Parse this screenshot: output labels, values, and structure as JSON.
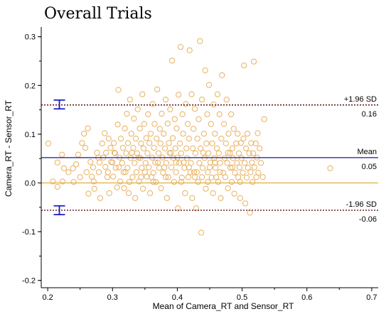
{
  "chart_data": {
    "type": "scatter",
    "title": "Overall Trials",
    "xlabel": "Mean of Camera_RT and Sensor_RT",
    "ylabel": "Camera_RT - Sensor_RT",
    "xlim": [
      0.19,
      0.71
    ],
    "ylim": [
      -0.215,
      0.32
    ],
    "x_ticks": [
      0.2,
      0.3,
      0.4,
      0.5,
      0.6,
      0.7
    ],
    "x_tick_labels": [
      "0.2",
      "0.3",
      "0.4",
      "0.5",
      "0.6",
      "0.7"
    ],
    "y_ticks": [
      -0.2,
      -0.1,
      0.0,
      0.1,
      0.2,
      0.3
    ],
    "y_tick_labels": [
      "-0.2",
      "-0.1",
      "0.0",
      "0.1",
      "0.2",
      "0.3"
    ],
    "grid": false,
    "zero_line": 0.0,
    "reference_lines": [
      {
        "name": "+1.96 SD",
        "value": 0.16,
        "value_label": "0.16",
        "color": "#5a1010",
        "style": "dashed"
      },
      {
        "name": "Mean",
        "value": 0.052,
        "value_label": "0.05",
        "color": "#1a1a8c",
        "style": "solid"
      },
      {
        "name": "-1.96 SD",
        "value": -0.056,
        "value_label": "-0.06",
        "color": "#5a1010",
        "style": "dashed"
      }
    ],
    "error_bars": [
      {
        "x": 0.218,
        "center": 0.161,
        "low": 0.152,
        "high": 0.17,
        "color": "#1a1acc"
      },
      {
        "x": 0.218,
        "center": -0.056,
        "low": -0.065,
        "high": -0.047,
        "color": "#1a1acc"
      }
    ],
    "colors": {
      "points": "#e8b060",
      "zero_line": "#e0b040",
      "axis": "#000000"
    },
    "points": [
      [
        0.201,
        0.081
      ],
      [
        0.222,
        0.058
      ],
      [
        0.215,
        0.042
      ],
      [
        0.225,
        0.03
      ],
      [
        0.208,
        0.003
      ],
      [
        0.223,
        0.003
      ],
      [
        0.215,
        -0.008
      ],
      [
        0.232,
        0.022
      ],
      [
        0.239,
        0.03
      ],
      [
        0.244,
        0.038
      ],
      [
        0.247,
        0.058
      ],
      [
        0.253,
        0.082
      ],
      [
        0.256,
        0.101
      ],
      [
        0.258,
        0.072
      ],
      [
        0.262,
        0.112
      ],
      [
        0.266,
        0.043
      ],
      [
        0.268,
        0.013
      ],
      [
        0.271,
        0.003
      ],
      [
        0.272,
        -0.012
      ],
      [
        0.276,
        0.062
      ],
      [
        0.279,
        0.022
      ],
      [
        0.281,
        -0.031
      ],
      [
        0.284,
        0.081
      ],
      [
        0.286,
        0.052
      ],
      [
        0.288,
        0.102
      ],
      [
        0.289,
        0.033
      ],
      [
        0.292,
        0.012
      ],
      [
        0.294,
        0.091
      ],
      [
        0.295,
        -0.021
      ],
      [
        0.297,
        0.072
      ],
      [
        0.298,
        0.043
      ],
      [
        0.301,
        0.013
      ],
      [
        0.302,
        0.082
      ],
      [
        0.304,
        0.061
      ],
      [
        0.305,
        0.031
      ],
      [
        0.307,
        -0.009
      ],
      [
        0.308,
        0.12
      ],
      [
        0.309,
        0.191
      ],
      [
        0.311,
        0.052
      ],
      [
        0.312,
        0.003
      ],
      [
        0.313,
        0.091
      ],
      [
        0.315,
        0.041
      ],
      [
        0.316,
        0.072
      ],
      [
        0.317,
        0.022
      ],
      [
        0.318,
        -0.011
      ],
      [
        0.319,
        0.112
      ],
      [
        0.321,
        0.061
      ],
      [
        0.322,
        0.142
      ],
      [
        0.323,
        0.031
      ],
      [
        0.324,
        0.082
      ],
      [
        0.325,
        -0.021
      ],
      [
        0.327,
        0.171
      ],
      [
        0.328,
        0.051
      ],
      [
        0.329,
        0.101
      ],
      [
        0.331,
        0.012
      ],
      [
        0.332,
        0.072
      ],
      [
        0.333,
        0.132
      ],
      [
        0.334,
        0.041
      ],
      [
        0.335,
        -0.031
      ],
      [
        0.336,
        0.091
      ],
      [
        0.337,
        0.022
      ],
      [
        0.338,
        0.061
      ],
      [
        0.339,
        0.151
      ],
      [
        0.341,
        0.003
      ],
      [
        0.342,
        0.112
      ],
      [
        0.343,
        0.051
      ],
      [
        0.344,
        0.081
      ],
      [
        0.345,
        0.031
      ],
      [
        0.346,
        0.182
      ],
      [
        0.347,
        -0.012
      ],
      [
        0.348,
        0.071
      ],
      [
        0.349,
        0.121
      ],
      [
        0.351,
        0.041
      ],
      [
        0.352,
        0.092
      ],
      [
        0.353,
        0.013
      ],
      [
        0.354,
        0.061
      ],
      [
        0.355,
        0.141
      ],
      [
        0.356,
        0.032
      ],
      [
        0.357,
        0.082
      ],
      [
        0.358,
        -0.021
      ],
      [
        0.359,
        0.101
      ],
      [
        0.361,
        0.052
      ],
      [
        0.362,
        0.162
      ],
      [
        0.363,
        0.021
      ],
      [
        0.364,
        0.072
      ],
      [
        0.365,
        0.121
      ],
      [
        0.366,
        0.042
      ],
      [
        0.367,
        0.002
      ],
      [
        0.368,
        0.091
      ],
      [
        0.369,
        0.192
      ],
      [
        0.371,
        0.061
      ],
      [
        0.372,
        0.031
      ],
      [
        0.373,
        0.111
      ],
      [
        0.374,
        0.081
      ],
      [
        0.375,
        -0.011
      ],
      [
        0.376,
        0.142
      ],
      [
        0.377,
        0.052
      ],
      [
        0.378,
        0.021
      ],
      [
        0.379,
        0.101
      ],
      [
        0.381,
        0.071
      ],
      [
        0.382,
        0.171
      ],
      [
        0.383,
        0.041
      ],
      [
        0.384,
        -0.031
      ],
      [
        0.385,
        0.122
      ],
      [
        0.386,
        0.012
      ],
      [
        0.387,
        0.082
      ],
      [
        0.388,
        0.061
      ],
      [
        0.389,
        0.151
      ],
      [
        0.391,
        0.032
      ],
      [
        0.392,
        0.251
      ],
      [
        0.393,
        0.092
      ],
      [
        0.394,
        0.051
      ],
      [
        0.395,
        0.002
      ],
      [
        0.396,
        0.131
      ],
      [
        0.397,
        0.071
      ],
      [
        0.398,
        0.022
      ],
      [
        0.399,
        0.112
      ],
      [
        0.401,
        -0.052
      ],
      [
        0.402,
        0.181
      ],
      [
        0.403,
        0.041
      ],
      [
        0.404,
        0.081
      ],
      [
        0.405,
        0.279
      ],
      [
        0.406,
        0.061
      ],
      [
        0.407,
        0.011
      ],
      [
        0.408,
        0.141
      ],
      [
        0.409,
        0.101
      ],
      [
        0.411,
        0.031
      ],
      [
        0.412,
        -0.021
      ],
      [
        0.413,
        0.162
      ],
      [
        0.414,
        0.071
      ],
      [
        0.415,
        0.051
      ],
      [
        0.416,
        0.121
      ],
      [
        0.417,
        0.012
      ],
      [
        0.418,
        0.091
      ],
      [
        0.419,
        0.272
      ],
      [
        0.421,
        0.041
      ],
      [
        0.422,
        0.182
      ],
      [
        0.423,
        -0.031
      ],
      [
        0.424,
        0.071
      ],
      [
        0.425,
        0.111
      ],
      [
        0.426,
        0.022
      ],
      [
        0.427,
        0.152
      ],
      [
        0.428,
        0.061
      ],
      [
        0.429,
        -0.052
      ],
      [
        0.431,
        0.091
      ],
      [
        0.432,
        0.002
      ],
      [
        0.433,
        0.131
      ],
      [
        0.434,
        0.041
      ],
      [
        0.435,
        0.291
      ],
      [
        0.436,
        0.071
      ],
      [
        0.437,
        -0.102
      ],
      [
        0.438,
        0.171
      ],
      [
        0.439,
        0.031
      ],
      [
        0.441,
        0.101
      ],
      [
        0.442,
        0.051
      ],
      [
        0.443,
        0.231
      ],
      [
        0.444,
        -0.012
      ],
      [
        0.445,
        0.081
      ],
      [
        0.446,
        0.141
      ],
      [
        0.447,
        0.022
      ],
      [
        0.448,
        0.061
      ],
      [
        0.449,
        0.201
      ],
      [
        0.451,
        0.042
      ],
      [
        0.452,
        0.121
      ],
      [
        0.453,
        0.011
      ],
      [
        0.454,
        0.081
      ],
      [
        0.455,
        -0.021
      ],
      [
        0.456,
        0.161
      ],
      [
        0.457,
        0.051
      ],
      [
        0.458,
        0.101
      ],
      [
        0.459,
        0.031
      ],
      [
        0.461,
        0.071
      ],
      [
        0.462,
        0.182
      ],
      [
        0.463,
        0.002
      ],
      [
        0.464,
        0.061
      ],
      [
        0.465,
        0.141
      ],
      [
        0.466,
        0.041
      ],
      [
        0.467,
        -0.031
      ],
      [
        0.468,
        0.091
      ],
      [
        0.469,
        0.221
      ],
      [
        0.471,
        0.021
      ],
      [
        0.472,
        0.121
      ],
      [
        0.473,
        0.051
      ],
      [
        0.474,
        0.012
      ],
      [
        0.475,
        0.081
      ],
      [
        0.476,
        0.171
      ],
      [
        0.477,
        0.041
      ],
      [
        0.478,
        -0.011
      ],
      [
        0.479,
        0.101
      ],
      [
        0.481,
        0.061
      ],
      [
        0.482,
        0.031
      ],
      [
        0.483,
        0.141
      ],
      [
        0.484,
        0.002
      ],
      [
        0.485,
        0.071
      ],
      [
        0.486,
        0.051
      ],
      [
        0.487,
        0.111
      ],
      [
        0.488,
        -0.022
      ],
      [
        0.489,
        0.021
      ],
      [
        0.491,
        0.081
      ],
      [
        0.492,
        0.041
      ],
      [
        0.493,
        0.101
      ],
      [
        0.494,
        0.012
      ],
      [
        0.495,
        0.061
      ],
      [
        0.496,
        0.032
      ],
      [
        0.497,
        -0.031
      ],
      [
        0.498,
        0.082
      ],
      [
        0.499,
        0.051
      ],
      [
        0.501,
        0.021
      ],
      [
        0.502,
        0.091
      ],
      [
        0.503,
        0.241
      ],
      [
        0.504,
        0.041
      ],
      [
        0.505,
        -0.042
      ],
      [
        0.506,
        0.071
      ],
      [
        0.507,
        0.011
      ],
      [
        0.508,
        0.101
      ],
      [
        0.509,
        0.031
      ],
      [
        0.511,
        0.061
      ],
      [
        0.512,
        -0.061
      ],
      [
        0.513,
        0.022
      ],
      [
        0.514,
        0.082
      ],
      [
        0.515,
        0.042
      ],
      [
        0.516,
        0.002
      ],
      [
        0.517,
        0.061
      ],
      [
        0.518,
        0.249
      ],
      [
        0.519,
        0.032
      ],
      [
        0.521,
        0.081
      ],
      [
        0.522,
        0.012
      ],
      [
        0.523,
        0.052
      ],
      [
        0.524,
        0.102
      ],
      [
        0.525,
        0.021
      ],
      [
        0.527,
        0.071
      ],
      [
        0.529,
        0.041
      ],
      [
        0.532,
        0.012
      ],
      [
        0.534,
        0.131
      ],
      [
        0.636,
        0.03
      ],
      [
        0.29,
        0.062
      ],
      [
        0.31,
        0.032
      ],
      [
        0.33,
        0.062
      ],
      [
        0.35,
        0.022
      ],
      [
        0.37,
        0.042
      ],
      [
        0.39,
        0.062
      ],
      [
        0.41,
        0.042
      ],
      [
        0.43,
        0.022
      ],
      [
        0.45,
        0.032
      ],
      [
        0.3,
        0.042
      ],
      [
        0.32,
        0.022
      ],
      [
        0.34,
        0.052
      ],
      [
        0.36,
        0.012
      ],
      [
        0.38,
        0.032
      ],
      [
        0.4,
        0.052
      ],
      [
        0.42,
        0.022
      ],
      [
        0.44,
        0.062
      ],
      [
        0.46,
        0.012
      ],
      [
        0.27,
        0.032
      ],
      [
        0.28,
        0.042
      ],
      [
        0.26,
        0.022
      ],
      [
        0.25,
        0.012
      ],
      [
        0.24,
        0.002
      ],
      [
        0.263,
        -0.022
      ],
      [
        0.278,
        0.052
      ],
      [
        0.293,
        0.022
      ],
      [
        0.303,
        0.062
      ],
      [
        0.326,
        0.002
      ],
      [
        0.344,
        0.012
      ],
      [
        0.363,
        0.002
      ],
      [
        0.382,
        0.012
      ],
      [
        0.398,
        0.042
      ],
      [
        0.418,
        0.032
      ],
      [
        0.438,
        0.012
      ],
      [
        0.458,
        0.042
      ],
      [
        0.478,
        0.062
      ],
      [
        0.497,
        0.002
      ],
      [
        0.485,
        0.032
      ],
      [
        0.466,
        0.022
      ],
      [
        0.447,
        0.002
      ],
      [
        0.427,
        0.012
      ],
      [
        0.406,
        0.002
      ]
    ]
  }
}
